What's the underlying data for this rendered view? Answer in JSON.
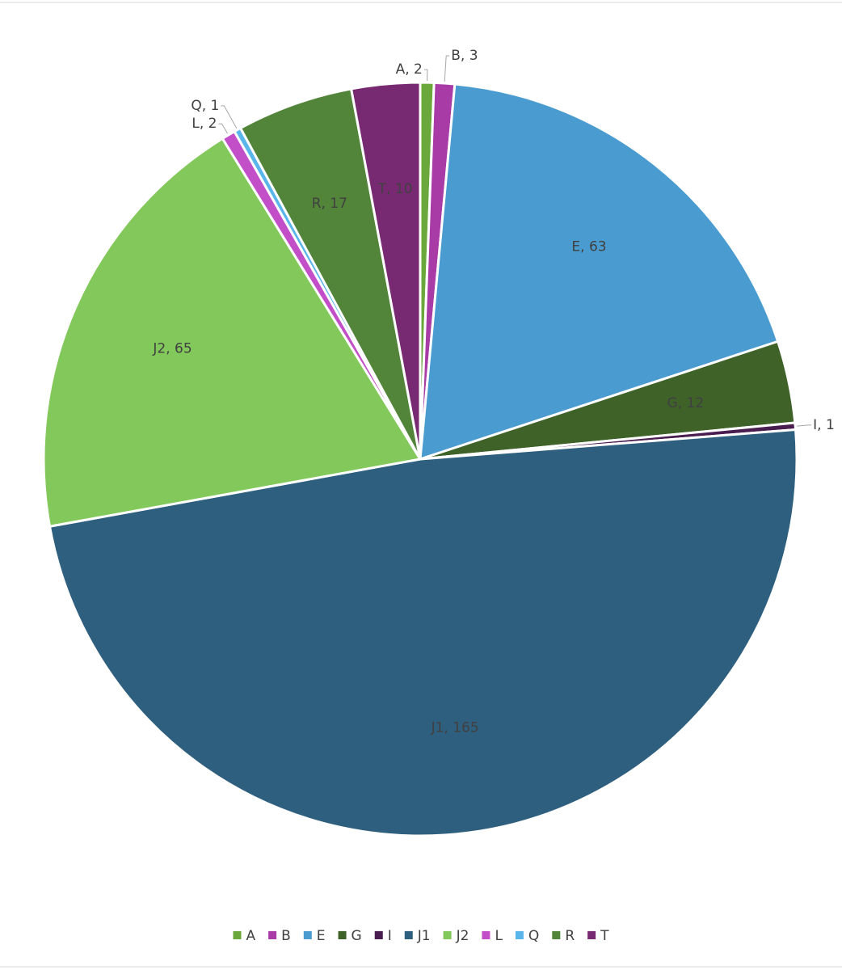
{
  "chart_data": {
    "type": "pie",
    "categories": [
      "A",
      "B",
      "E",
      "G",
      "I",
      "J1",
      "J2",
      "L",
      "Q",
      "R",
      "T"
    ],
    "values": [
      2,
      3,
      63,
      12,
      1,
      165,
      65,
      2,
      1,
      17,
      10
    ],
    "value_labels": [
      "A, 2",
      "B, 3",
      "E, 63",
      "G, 12",
      "I, 1",
      "J1, 165",
      "J2, 65",
      "L, 2",
      "Q, 1",
      "R, 17",
      "T, 10"
    ],
    "colors": [
      "#6aa83c",
      "#a83ba6",
      "#4a9bd0",
      "#3f6229",
      "#4a1d50",
      "#2e5f7e",
      "#82c85b",
      "#c24fc8",
      "#5ab6ea",
      "#52843a",
      "#772a72"
    ],
    "legend": "bottom"
  }
}
